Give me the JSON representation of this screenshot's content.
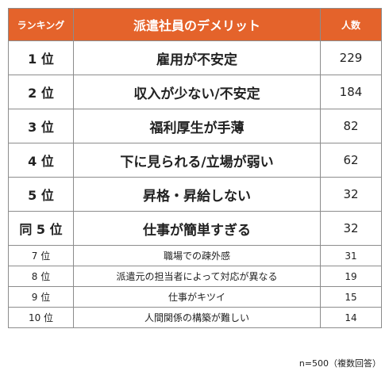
{
  "table": {
    "headers": {
      "rank": "ランキング",
      "reason": "派遣社員のデメリット",
      "count": "人数"
    },
    "rows": [
      {
        "rank": "1 位",
        "reason": "雇用が不安定",
        "count": "229"
      },
      {
        "rank": "2 位",
        "reason": "収入が少ない/不安定",
        "count": "184"
      },
      {
        "rank": "3 位",
        "reason": "福利厚生が手薄",
        "count": "82"
      },
      {
        "rank": "4 位",
        "reason": "下に見られる/立場が弱い",
        "count": "62"
      },
      {
        "rank": "5 位",
        "reason": "昇格・昇給しない",
        "count": "32"
      },
      {
        "rank": "同 5 位",
        "reason": "仕事が簡単すぎる",
        "count": "32"
      },
      {
        "rank": "7 位",
        "reason": "職場での疎外感",
        "count": "31"
      },
      {
        "rank": "8 位",
        "reason": "派遣元の担当者によって対応が異なる",
        "count": "19"
      },
      {
        "rank": "9 位",
        "reason": "仕事がキツイ",
        "count": "15"
      },
      {
        "rank": "10 位",
        "reason": "人間関係の構築が難しい",
        "count": "14"
      }
    ]
  },
  "note": "n=500（複数回答）",
  "colors": {
    "header_background": "#e4632b",
    "header_text": "#ffffff",
    "border": "#8c8c8c"
  }
}
